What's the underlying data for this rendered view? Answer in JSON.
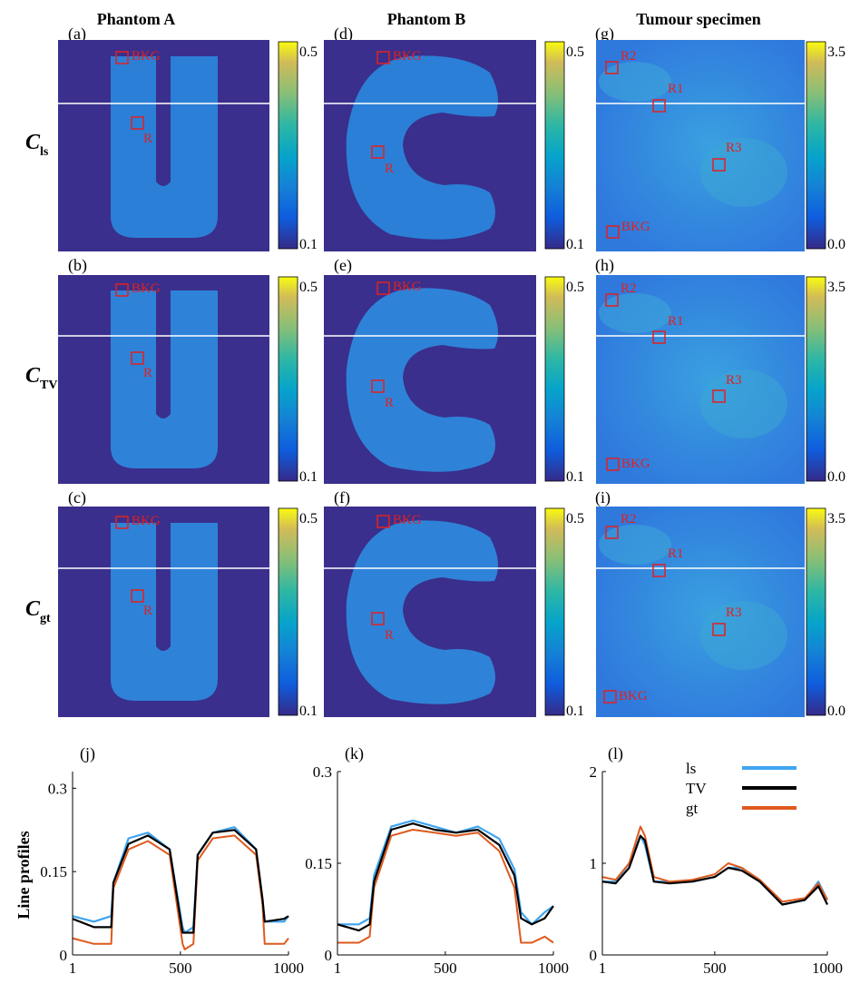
{
  "column_titles": [
    "Phantom A",
    "Phantom B",
    "Tumour specimen"
  ],
  "row_labels": [
    {
      "main": "C",
      "sub": "ls"
    },
    {
      "main": "C",
      "sub": "TV"
    },
    {
      "main": "C",
      "sub": "gt"
    }
  ],
  "panel_tags": [
    "(a)",
    "(b)",
    "(c)",
    "(d)",
    "(e)",
    "(f)",
    "(g)",
    "(h)",
    "(i)",
    "(j)",
    "(k)",
    "(l)"
  ],
  "colorbars": {
    "phantom": {
      "max": "0.5",
      "min": "0.1"
    },
    "tumour": {
      "max": "3.5",
      "min": "0.0"
    }
  },
  "roi_labels": {
    "phantom": [
      "BKG",
      "R"
    ],
    "tumour": [
      "R1",
      "R2",
      "R3",
      "BKG"
    ]
  },
  "colors": {
    "background_map": "#3a2f8c",
    "object_fill": "#2b7fd6",
    "tissue_fill": "#2f79dd",
    "roi": "#e22020",
    "profile_line": "#ffffff",
    "ls": "#3fa4f0",
    "tv": "#000000",
    "gt": "#de5a1e"
  },
  "chart_data": [
    {
      "type": "line",
      "panel": "(j)",
      "ylabel": "Line profiles",
      "xlim": [
        1,
        1000
      ],
      "ylim": [
        0,
        0.33
      ],
      "x_ticks": [
        "1",
        "500",
        "1000"
      ],
      "y_ticks": [
        "0",
        "0.15",
        "0.3"
      ],
      "series": [
        {
          "name": "ls",
          "x": [
            1,
            100,
            180,
            190,
            260,
            350,
            450,
            510,
            520,
            560,
            580,
            650,
            750,
            850,
            880,
            890,
            980,
            1000
          ],
          "y": [
            0.07,
            0.06,
            0.07,
            0.13,
            0.21,
            0.22,
            0.19,
            0.05,
            0.04,
            0.05,
            0.18,
            0.22,
            0.23,
            0.19,
            0.1,
            0.06,
            0.06,
            0.07
          ]
        },
        {
          "name": "TV",
          "x": [
            1,
            100,
            180,
            190,
            260,
            350,
            450,
            510,
            520,
            560,
            580,
            650,
            750,
            850,
            880,
            890,
            980,
            1000
          ],
          "y": [
            0.065,
            0.05,
            0.05,
            0.13,
            0.2,
            0.215,
            0.19,
            0.04,
            0.04,
            0.04,
            0.18,
            0.22,
            0.225,
            0.19,
            0.1,
            0.06,
            0.065,
            0.07
          ]
        },
        {
          "name": "gt",
          "x": [
            1,
            100,
            180,
            190,
            260,
            350,
            450,
            510,
            520,
            560,
            580,
            650,
            750,
            850,
            880,
            890,
            980,
            1000
          ],
          "y": [
            0.03,
            0.02,
            0.02,
            0.12,
            0.19,
            0.205,
            0.18,
            0.02,
            0.01,
            0.02,
            0.17,
            0.21,
            0.215,
            0.18,
            0.09,
            0.02,
            0.02,
            0.03
          ]
        }
      ]
    },
    {
      "type": "line",
      "panel": "(k)",
      "xlim": [
        1,
        1000
      ],
      "ylim": [
        0,
        0.3
      ],
      "x_ticks": [
        "1",
        "500",
        "1000"
      ],
      "y_ticks": [
        "0",
        "0.15",
        "0.3"
      ],
      "series": [
        {
          "name": "ls",
          "x": [
            1,
            100,
            150,
            170,
            250,
            350,
            450,
            550,
            650,
            750,
            820,
            850,
            900,
            960,
            1000
          ],
          "y": [
            0.05,
            0.05,
            0.06,
            0.13,
            0.21,
            0.22,
            0.21,
            0.2,
            0.21,
            0.19,
            0.14,
            0.07,
            0.05,
            0.07,
            0.08
          ]
        },
        {
          "name": "TV",
          "x": [
            1,
            100,
            150,
            170,
            250,
            350,
            450,
            550,
            650,
            750,
            820,
            850,
            900,
            960,
            1000
          ],
          "y": [
            0.05,
            0.04,
            0.05,
            0.12,
            0.205,
            0.215,
            0.205,
            0.2,
            0.205,
            0.18,
            0.13,
            0.06,
            0.05,
            0.06,
            0.08
          ]
        },
        {
          "name": "gt",
          "x": [
            1,
            100,
            150,
            170,
            250,
            350,
            450,
            550,
            650,
            750,
            820,
            850,
            900,
            960,
            1000
          ],
          "y": [
            0.02,
            0.02,
            0.03,
            0.11,
            0.195,
            0.205,
            0.2,
            0.195,
            0.2,
            0.17,
            0.11,
            0.02,
            0.02,
            0.03,
            0.02
          ]
        }
      ]
    },
    {
      "type": "line",
      "panel": "(l)",
      "xlim": [
        1,
        1000
      ],
      "ylim": [
        0,
        2
      ],
      "x_ticks": [
        "1",
        "500",
        "1000"
      ],
      "y_ticks": [
        "0",
        "1",
        "2"
      ],
      "legend": {
        "position": "top-right",
        "entries": [
          "ls",
          "TV",
          "gt"
        ]
      },
      "series": [
        {
          "name": "ls",
          "x": [
            1,
            60,
            120,
            170,
            190,
            230,
            300,
            400,
            500,
            560,
            620,
            700,
            800,
            900,
            960,
            1000
          ],
          "y": [
            0.8,
            0.8,
            1.0,
            1.3,
            1.2,
            0.8,
            0.8,
            0.8,
            0.85,
            0.95,
            0.95,
            0.8,
            0.55,
            0.6,
            0.8,
            0.6
          ]
        },
        {
          "name": "TV",
          "x": [
            1,
            60,
            120,
            170,
            190,
            230,
            300,
            400,
            500,
            560,
            620,
            700,
            800,
            900,
            960,
            1000
          ],
          "y": [
            0.8,
            0.78,
            0.95,
            1.3,
            1.25,
            0.8,
            0.78,
            0.8,
            0.85,
            0.95,
            0.92,
            0.8,
            0.55,
            0.6,
            0.75,
            0.55
          ]
        },
        {
          "name": "gt",
          "x": [
            1,
            60,
            120,
            170,
            190,
            230,
            300,
            400,
            500,
            560,
            620,
            700,
            800,
            900,
            960,
            1000
          ],
          "y": [
            0.85,
            0.82,
            1.0,
            1.4,
            1.3,
            0.85,
            0.8,
            0.82,
            0.88,
            1.0,
            0.95,
            0.82,
            0.58,
            0.62,
            0.78,
            0.6
          ]
        }
      ]
    }
  ]
}
